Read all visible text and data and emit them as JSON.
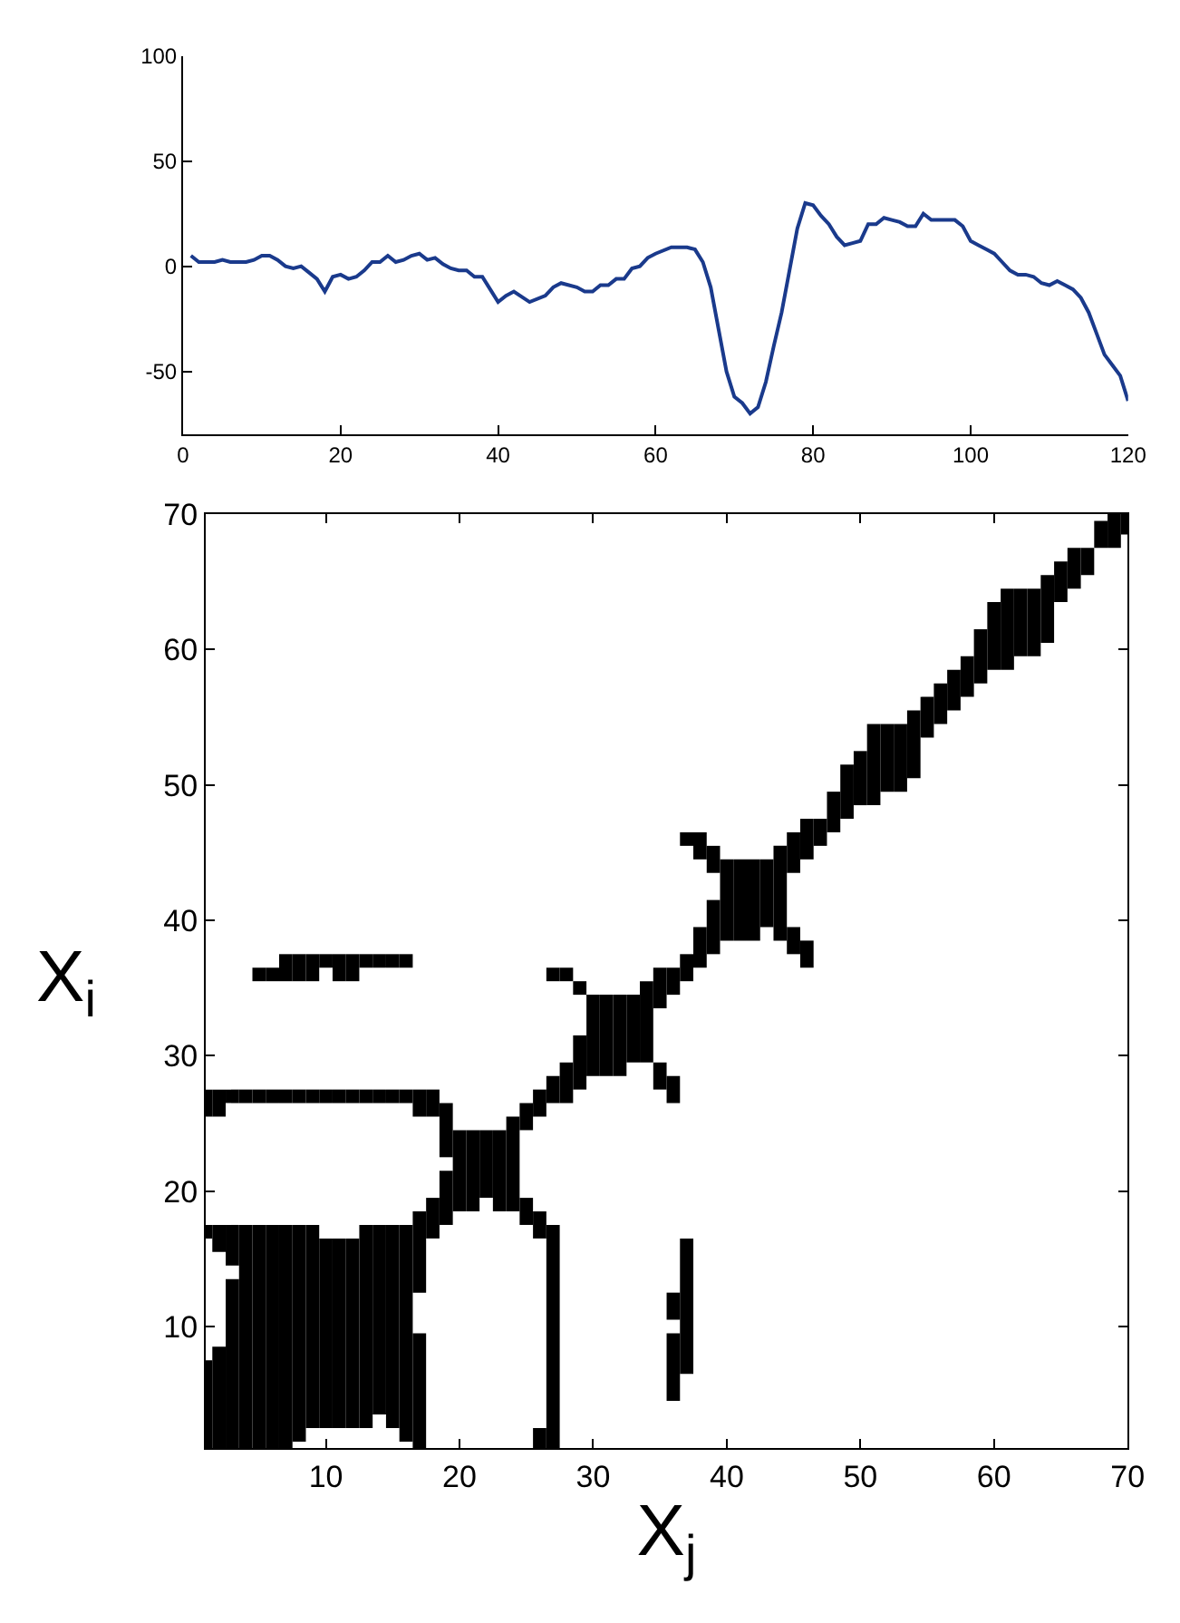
{
  "chart_data": [
    {
      "type": "line",
      "x": [
        1,
        2,
        3,
        4,
        5,
        6,
        8,
        9,
        10,
        11,
        12,
        13,
        14,
        15,
        16,
        17,
        18,
        19,
        20,
        21,
        22,
        23,
        24,
        25,
        26,
        27,
        28,
        29,
        30,
        31,
        32,
        33,
        34,
        35,
        36,
        37,
        38,
        39,
        40,
        41,
        42,
        44,
        46,
        47,
        48,
        50,
        51,
        52,
        53,
        54,
        55,
        56,
        57,
        58,
        59,
        60,
        62,
        64,
        65,
        66,
        67,
        68,
        69,
        70,
        71,
        72,
        73,
        74,
        75,
        76,
        77,
        78,
        79,
        80,
        81,
        82,
        83,
        84,
        85,
        86,
        87,
        88,
        89,
        90,
        91,
        92,
        93,
        94,
        95,
        96,
        97,
        98,
        99,
        100,
        101,
        102,
        103,
        104,
        105,
        106,
        107,
        108,
        109,
        110,
        111,
        112,
        113,
        114,
        115,
        116,
        117,
        118,
        119,
        120
      ],
      "series": [
        {
          "color": "#1a3a8c",
          "values": [
            5,
            2,
            2,
            2,
            3,
            2,
            2,
            3,
            5,
            5,
            3,
            0,
            -1,
            0,
            -3,
            -6,
            -12,
            -5,
            -4,
            -6,
            -5,
            -2,
            2,
            2,
            5,
            2,
            3,
            5,
            6,
            3,
            4,
            1,
            -1,
            -2,
            -2,
            -5,
            -5,
            -11,
            -17,
            -14,
            -12,
            -17,
            -14,
            -10,
            -8,
            -10,
            -12,
            -12,
            -9,
            -9,
            -6,
            -6,
            -1,
            0,
            4,
            6,
            9,
            9,
            8,
            2,
            -10,
            -30,
            -50,
            -62,
            -65,
            -70,
            -67,
            -55,
            -38,
            -22,
            -2,
            18,
            30,
            29,
            24,
            20,
            14,
            10,
            11,
            12,
            20,
            20,
            23,
            22,
            21,
            19,
            19,
            25,
            22,
            22,
            22,
            22,
            19,
            12,
            10,
            8,
            6,
            2,
            -2,
            -4,
            -4,
            -5,
            -8,
            -9,
            -7,
            -9,
            -11,
            -15,
            -22,
            -32,
            -42,
            -47,
            -52,
            -64
          ]
        }
      ],
      "xlim": [
        0,
        120
      ],
      "ylim": [
        -80,
        100
      ],
      "xticks": [
        0,
        20,
        40,
        60,
        80,
        100,
        120
      ],
      "yticks": [
        -50,
        0,
        50,
        100
      ]
    },
    {
      "type": "bar",
      "series": [
        {
          "color": "#000000",
          "x": [
            1,
            2,
            3,
            4,
            5,
            6,
            7,
            8,
            9,
            10,
            11,
            12,
            13,
            14,
            15,
            16,
            17,
            18,
            19,
            20,
            21,
            22,
            23,
            24,
            25,
            26,
            27,
            28,
            29,
            30,
            31,
            32,
            33,
            34,
            35,
            36,
            37,
            38,
            39,
            40,
            41,
            42,
            43,
            44,
            45,
            46,
            47,
            48,
            49,
            50,
            51,
            52,
            53,
            54,
            55,
            56,
            57,
            58,
            59,
            60,
            61,
            62,
            63,
            64,
            65,
            66,
            67,
            68,
            69,
            70
          ],
          "base": [
            1,
            1,
            1,
            1,
            1,
            1,
            1,
            1.5,
            2.5,
            2.5,
            2.5,
            2.5,
            2.5,
            3.5,
            2.5,
            1.5,
            1,
            16.5,
            17.5,
            18.5,
            18.5,
            19.5,
            18.5,
            18.5,
            17.5,
            1,
            1,
            26.5,
            27.5,
            28.5,
            28.5,
            28.5,
            29.5,
            29.5,
            27.5,
            4.5,
            6.5,
            36.5,
            37.5,
            38.5,
            38.5,
            38.5,
            39.5,
            38.5,
            37.5,
            36.5,
            45.5,
            46.5,
            47.5,
            48.5,
            48.5,
            49.5,
            49.5,
            50.5,
            53.5,
            54.5,
            55.5,
            56.5,
            57.5,
            58.5,
            58.5,
            59.5,
            59.5,
            60.5,
            63.5,
            64.5,
            65.5,
            67.5,
            67.5,
            68.5
          ],
          "values": [
            6.5,
            7.5,
            12.5,
            16.5,
            16.5,
            16.5,
            16.5,
            16,
            15,
            14,
            14,
            14,
            15,
            14,
            15,
            16,
            8.5,
            3,
            4,
            6,
            6,
            5,
            6,
            7,
            2,
            1.5,
            16.5,
            3,
            4,
            6,
            6,
            6,
            5,
            6,
            2,
            5,
            10,
            3,
            4,
            6,
            6,
            6,
            5,
            7,
            2,
            2,
            2,
            3,
            4,
            4,
            6,
            5,
            5,
            5,
            3,
            3,
            3,
            3,
            4,
            5,
            6,
            5,
            5,
            5,
            3,
            3,
            2,
            2,
            2.5,
            1.5
          ]
        },
        {
          "color": "#000000",
          "x": [
            1,
            2,
            3,
            4,
            5,
            6,
            7,
            8,
            9,
            10,
            11,
            12,
            13,
            14,
            15,
            16,
            17,
            18,
            19,
            25,
            26,
            27,
            28,
            29,
            35,
            36,
            37,
            38,
            39,
            45,
            46
          ],
          "base": [
            16.5,
            15.5,
            14.5,
            26.5,
            26.5,
            26.5,
            26.5,
            26.5,
            26.5,
            26.5,
            26.5,
            26.5,
            26.5,
            26.5,
            26.5,
            26.5,
            12.5,
            25.5,
            22.5,
            24.5,
            16.5,
            26.5,
            35.5,
            34.5,
            33.5,
            10.5,
            35.5,
            44.5,
            43.5,
            43.5,
            44.5
          ],
          "values": [
            1,
            2,
            3,
            1,
            1,
            1,
            1,
            1,
            1,
            1,
            1,
            1,
            1,
            1,
            1,
            1,
            6,
            2,
            4,
            2,
            2,
            2,
            1,
            1,
            3,
            2,
            2,
            2,
            2,
            3,
            3
          ]
        },
        {
          "color": "#000000",
          "x": [
            1,
            2,
            3,
            5,
            6,
            7,
            8,
            9,
            10,
            11,
            12,
            13,
            14,
            15,
            16,
            17,
            26,
            27,
            36,
            37
          ],
          "base": [
            25.5,
            25.5,
            26.5,
            35.5,
            35.5,
            35.5,
            35.5,
            35.5,
            36.5,
            35.5,
            35.5,
            36.5,
            36.5,
            36.5,
            36.5,
            25.5,
            25.5,
            35.5,
            26.5,
            45.5
          ],
          "values": [
            2,
            2,
            1,
            1,
            1,
            2,
            2,
            2,
            1,
            2,
            2,
            1,
            1,
            1,
            1,
            2,
            2,
            1,
            2,
            1
          ]
        },
        {
          "color": "#000000",
          "x": [
            36
          ],
          "base": [
            34.5
          ],
          "values": [
            2
          ]
        }
      ],
      "xlim": [
        1,
        70
      ],
      "ylim": [
        1,
        70
      ],
      "xticks": [
        10,
        20,
        30,
        40,
        50,
        60,
        70
      ],
      "yticks": [
        10,
        20,
        30,
        40,
        50,
        60,
        70
      ],
      "xlabel": "X$_{j}$",
      "ylabel": "X$_{i}$"
    }
  ]
}
